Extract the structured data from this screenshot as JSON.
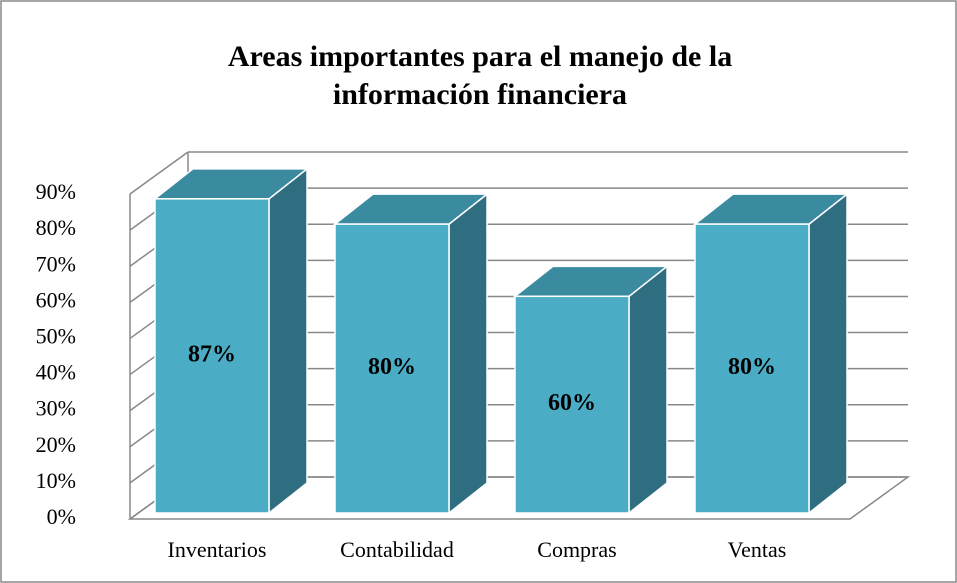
{
  "chart_data": {
    "type": "bar3d",
    "title": "Areas importantes para el manejo de la información financiera",
    "categories": [
      "Inventarios",
      "Contabilidad",
      "Compras",
      "Ventas"
    ],
    "values": [
      87,
      80,
      60,
      80
    ],
    "value_labels": [
      "87%",
      "80%",
      "60%",
      "80%"
    ],
    "color": "#4bacc6",
    "ylim": [
      0,
      90
    ],
    "yticks": [
      {
        "value": 0,
        "label": "0%"
      },
      {
        "value": 10,
        "label": "10%"
      },
      {
        "value": 20,
        "label": "20%"
      },
      {
        "value": 30,
        "label": "30%"
      },
      {
        "value": 40,
        "label": "40%"
      },
      {
        "value": 50,
        "label": "50%"
      },
      {
        "value": 60,
        "label": "60%"
      },
      {
        "value": 70,
        "label": "70%"
      },
      {
        "value": 80,
        "label": "80%"
      },
      {
        "value": 90,
        "label": "90%"
      }
    ],
    "grid": true
  }
}
